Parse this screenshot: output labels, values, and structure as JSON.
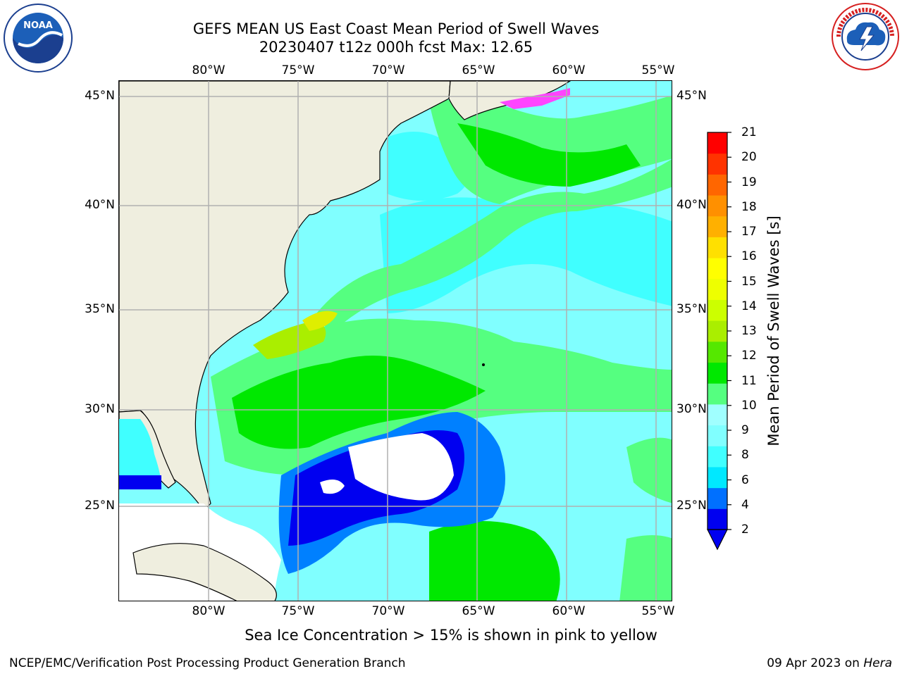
{
  "header": {
    "title_line1": "GEFS MEAN US East Coast Mean Period of Swell Waves",
    "title_line2": "20230407 t12z 000h fcst   Max: 12.65"
  },
  "logos": [
    {
      "name": "noaa-logo",
      "text": "NOAA",
      "ring_text": "NATIONAL OCEANIC AND ATMOSPHERIC ADMINISTRATION · U.S. DEPARTMENT OF COMMERCE"
    },
    {
      "name": "nws-logo",
      "ring_text": "NATIONAL WEATHER SERVICE"
    }
  ],
  "map": {
    "projection": "plate carree",
    "lon_range": [
      -85,
      -54
    ],
    "lat_range": [
      20.5,
      46
    ],
    "lon_ticks": [
      "80°W",
      "75°W",
      "70°W",
      "65°W",
      "60°W",
      "55°W"
    ],
    "lat_ticks": [
      "45°N",
      "40°N",
      "35°N",
      "30°N",
      "25°N"
    ],
    "grid": true,
    "land_color": "#efeedf",
    "colors": {
      "2-4": "#0000f0",
      "4-6": "#0080ff",
      "6-8": "#00ffff",
      "8-9": "#80ffff",
      "9-10": "#55ff80",
      "10-11": "#00e800",
      "11-12": "#55e800",
      "12-13": "#aadd00",
      "13-14": "#dfee00",
      "14-15": "#ffff00",
      "15-16": "#ffee00",
      "16-17": "#ffbb00",
      "17-18": "#ff9900",
      "18-19": "#ff7700",
      "19-20": "#ff3300",
      "20-21": "#ff0000"
    },
    "sea_ice_color": "#ff44ff"
  },
  "colorbar": {
    "label": "Mean Period of Swell Waves [s]",
    "ticks": [
      "21",
      "20",
      "19",
      "18",
      "17",
      "16",
      "15",
      "14",
      "13",
      "12",
      "11",
      "10",
      "9",
      "8",
      "6",
      "4",
      "2"
    ],
    "extend": "min",
    "segment_colors": [
      "#0000f0",
      "#0070ff",
      "#00e8ff",
      "#40ffff",
      "#80ffff",
      "#a0ffff",
      "#55ff80",
      "#00e800",
      "#55e800",
      "#aaee00",
      "#ccff00",
      "#eeff00",
      "#ffff00",
      "#ffe000",
      "#ffb000",
      "#ff9000",
      "#ff6600",
      "#ff3300",
      "#ff0000"
    ]
  },
  "note": "Sea Ice Concentration > 15% is shown in pink to yellow",
  "footer": {
    "left": "NCEP/EMC/Verification Post Processing Product Generation Branch",
    "right_date": "09 Apr 2023 on ",
    "right_machine": "Hera"
  }
}
